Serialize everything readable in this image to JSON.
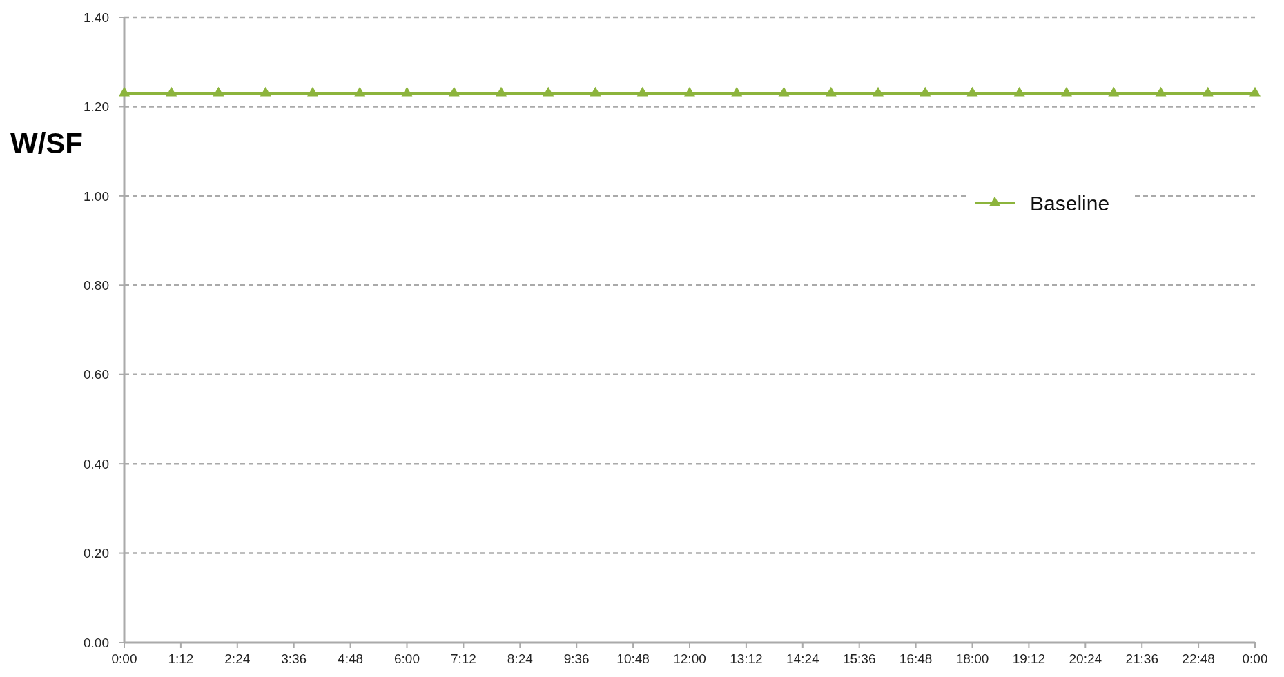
{
  "chart_data": {
    "type": "line",
    "ylabel": "W/SF",
    "x": [
      0,
      1,
      2,
      3,
      4,
      5,
      6,
      7,
      8,
      9,
      10,
      11,
      12,
      13,
      14,
      15,
      16,
      17,
      18,
      19,
      20,
      21,
      22,
      23,
      24
    ],
    "series": [
      {
        "name": "Baseline",
        "color": "#8cb43c",
        "values": [
          1.23,
          1.23,
          1.23,
          1.23,
          1.23,
          1.23,
          1.23,
          1.23,
          1.23,
          1.23,
          1.23,
          1.23,
          1.23,
          1.23,
          1.23,
          1.23,
          1.23,
          1.23,
          1.23,
          1.23,
          1.23,
          1.23,
          1.23,
          1.23,
          1.23
        ]
      }
    ],
    "xlim": [
      0,
      24
    ],
    "xticks": [
      {
        "value": 0,
        "label": "0:00"
      },
      {
        "value": 1.2,
        "label": "1:12"
      },
      {
        "value": 2.4,
        "label": "2:24"
      },
      {
        "value": 3.6,
        "label": "3:36"
      },
      {
        "value": 4.8,
        "label": "4:48"
      },
      {
        "value": 6,
        "label": "6:00"
      },
      {
        "value": 7.2,
        "label": "7:12"
      },
      {
        "value": 8.4,
        "label": "8:24"
      },
      {
        "value": 9.6,
        "label": "9:36"
      },
      {
        "value": 10.8,
        "label": "10:48"
      },
      {
        "value": 12,
        "label": "12:00"
      },
      {
        "value": 13.2,
        "label": "13:12"
      },
      {
        "value": 14.4,
        "label": "14:24"
      },
      {
        "value": 15.6,
        "label": "15:36"
      },
      {
        "value": 16.8,
        "label": "16:48"
      },
      {
        "value": 18,
        "label": "18:00"
      },
      {
        "value": 19.2,
        "label": "19:12"
      },
      {
        "value": 20.4,
        "label": "20:24"
      },
      {
        "value": 21.6,
        "label": "21:36"
      },
      {
        "value": 22.8,
        "label": "22:48"
      },
      {
        "value": 24,
        "label": "0:00"
      }
    ],
    "ylim": [
      0,
      1.4
    ],
    "yticks": [
      {
        "value": 0,
        "label": "0.00"
      },
      {
        "value": 0.2,
        "label": "0.20"
      },
      {
        "value": 0.4,
        "label": "0.40"
      },
      {
        "value": 0.6,
        "label": "0.60"
      },
      {
        "value": 0.8,
        "label": "0.80"
      },
      {
        "value": 1,
        "label": "1.00"
      },
      {
        "value": 1.2,
        "label": "1.20"
      },
      {
        "value": 1.4,
        "label": "1.40"
      }
    ],
    "grid": "y",
    "legend": "right",
    "marker": "triangle",
    "line_style": "solid"
  }
}
